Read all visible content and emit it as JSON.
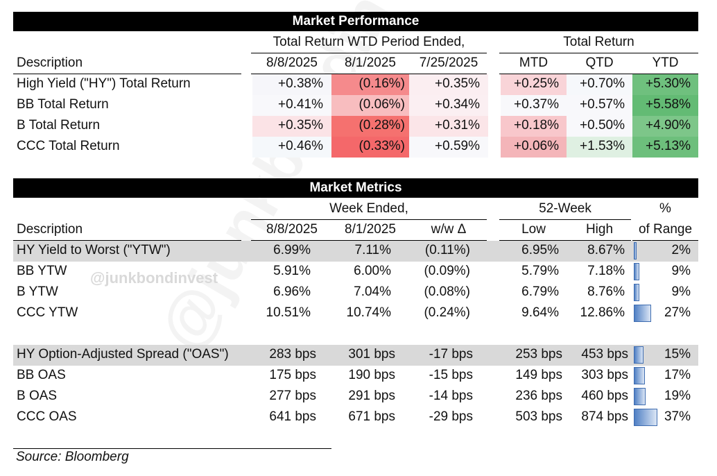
{
  "watermark": "@junkbondinvest",
  "performance": {
    "title": "Market Performance",
    "group_wtd": "Total Return WTD Period Ended,",
    "group_tr": "Total Return",
    "desc_header": "Description",
    "columns": [
      "8/8/2025",
      "8/1/2025",
      "7/25/2025",
      "MTD",
      "QTD",
      "YTD"
    ],
    "rows": [
      {
        "label": "High Yield (\"HY\") Total Return",
        "values": [
          "+0.38%",
          "(0.16%)",
          "+0.35%",
          "+0.25%",
          "+0.70%",
          "+5.30%"
        ]
      },
      {
        "label": "BB Total Return",
        "values": [
          "+0.41%",
          "(0.06%)",
          "+0.34%",
          "+0.37%",
          "+0.57%",
          "+5.58%"
        ]
      },
      {
        "label": "B Total Return",
        "values": [
          "+0.35%",
          "(0.28%)",
          "+0.31%",
          "+0.18%",
          "+0.50%",
          "+4.90%"
        ]
      },
      {
        "label": "CCC Total Return",
        "values": [
          "+0.46%",
          "(0.33%)",
          "+0.59%",
          "+0.06%",
          "+1.53%",
          "+5.13%"
        ]
      }
    ],
    "heat_colors": [
      [
        "#f6f6fa",
        "#f58a8c",
        "#fbeef1",
        "#f9d4d8",
        "#f6f8fb",
        "#6fc07e"
      ],
      [
        "#f8f8fb",
        "#f8bdbf",
        "#fbeff2",
        "#f8f8fb",
        "#f8f8fb",
        "#63bb74"
      ],
      [
        "#fbe3e6",
        "#f5716f",
        "#fbe5e8",
        "#f8c7cb",
        "#f8f8fb",
        "#7dc689"
      ],
      [
        "#f5f8fb",
        "#f4686a",
        "#f8f8fb",
        "#f4b5b9",
        "#dff0e2",
        "#6dbf7c"
      ]
    ]
  },
  "metrics": {
    "title": "Market Metrics",
    "group_week": "Week Ended,",
    "group_52": "52-Week",
    "pct_top": "%",
    "pct_bottom": "of Range",
    "desc_header": "Description",
    "columns": [
      "8/8/2025",
      "8/1/2025",
      "w/w Δ",
      "Low",
      "High"
    ],
    "ytw_rows": [
      {
        "label": "HY Yield to Worst (\"YTW\")",
        "values": [
          "6.99%",
          "7.11%",
          "(0.11%)",
          "6.95%",
          "8.67%"
        ],
        "pct": "2%",
        "pct_value": 0.02
      },
      {
        "label": "BB YTW",
        "values": [
          "5.91%",
          "6.00%",
          "(0.09%)",
          "5.79%",
          "7.18%"
        ],
        "pct": "9%",
        "pct_value": 0.09
      },
      {
        "label": "B YTW",
        "values": [
          "6.96%",
          "7.04%",
          "(0.08%)",
          "6.79%",
          "8.76%"
        ],
        "pct": "9%",
        "pct_value": 0.09
      },
      {
        "label": "CCC YTW",
        "values": [
          "10.51%",
          "10.74%",
          "(0.24%)",
          "9.64%",
          "12.86%"
        ],
        "pct": "27%",
        "pct_value": 0.27
      }
    ],
    "oas_rows": [
      {
        "label": "HY Option-Adjusted Spread (\"OAS\")",
        "values": [
          "283 bps",
          "301 bps",
          "-17 bps",
          "253 bps",
          "453 bps"
        ],
        "pct": "15%",
        "pct_value": 0.15
      },
      {
        "label": "BB OAS",
        "values": [
          "175 bps",
          "190 bps",
          "-15 bps",
          "149 bps",
          "303 bps"
        ],
        "pct": "17%",
        "pct_value": 0.17
      },
      {
        "label": "B OAS",
        "values": [
          "277 bps",
          "291 bps",
          "-14 bps",
          "236 bps",
          "460 bps"
        ],
        "pct": "19%",
        "pct_value": 0.19
      },
      {
        "label": "CCC OAS",
        "values": [
          "641 bps",
          "671 bps",
          "-29 bps",
          "503 bps",
          "874 bps"
        ],
        "pct": "37%",
        "pct_value": 0.37
      }
    ]
  },
  "source": "Source: Bloomberg"
}
